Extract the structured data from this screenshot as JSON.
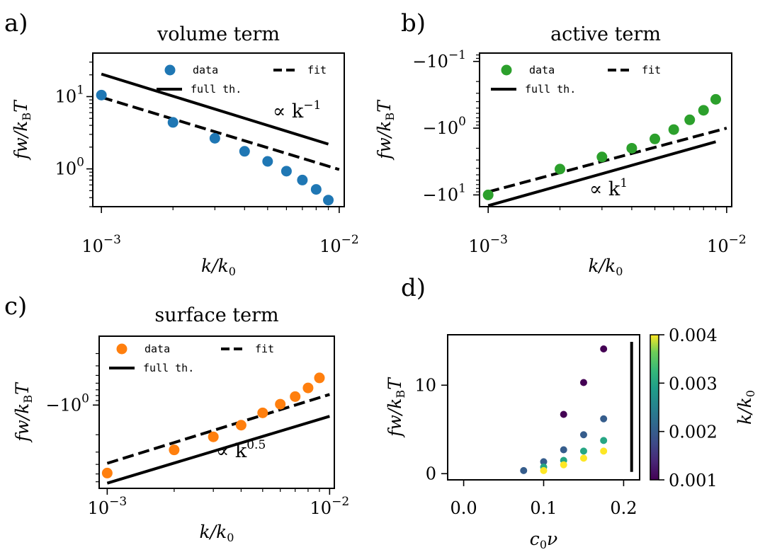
{
  "colors": {
    "blue": "#1f77b4",
    "green": "#2ca02c",
    "orange": "#ff7f0e",
    "black": "#000000"
  },
  "chart_data": [
    {
      "id": "a",
      "panel_label": "a)",
      "type": "scatter",
      "title": "volume term",
      "xscale": "log",
      "yscale": "log",
      "xlim": [
        0.00092,
        0.0105
      ],
      "ylim": [
        0.3,
        40
      ],
      "xticks": [
        {
          "v": 0.001,
          "b": "10",
          "e": "−3"
        },
        {
          "v": 0.01,
          "b": "10",
          "e": "−2"
        }
      ],
      "yticks": [
        {
          "v": 1,
          "b": "10",
          "e": "0"
        },
        {
          "v": 10,
          "b": "10",
          "e": "1"
        }
      ],
      "xlabel": {
        "main": "k/k",
        "sub": "0"
      },
      "ylabel": {
        "main": "fw/k",
        "sub": "B",
        "tail": "T"
      },
      "series": [
        {
          "name": "data",
          "kind": "points",
          "color": "blue",
          "x": [
            0.001,
            0.002,
            0.003,
            0.004,
            0.005,
            0.006,
            0.007,
            0.008,
            0.009
          ],
          "y": [
            10.5,
            4.4,
            2.65,
            1.75,
            1.27,
            0.93,
            0.7,
            0.52,
            0.37
          ]
        },
        {
          "name": "fit",
          "kind": "dashed",
          "x": [
            0.001,
            0.01
          ],
          "y": [
            9.8,
            0.98
          ]
        },
        {
          "name": "full th.",
          "kind": "solid",
          "x": [
            0.001,
            0.009
          ],
          "y": [
            20.5,
            2.2
          ]
        }
      ],
      "legend": [
        "data",
        "fit",
        "full th."
      ],
      "annotation": {
        "text": "∝ k",
        "sup": "−1"
      }
    },
    {
      "id": "b",
      "panel_label": "b)",
      "type": "scatter",
      "title": "active term",
      "xscale": "log",
      "yscale": "neglog",
      "xlim": [
        0.00092,
        0.0105
      ],
      "ylim": [
        -15,
        -0.075
      ],
      "xticks": [
        {
          "v": 0.001,
          "b": "10",
          "e": "−3"
        },
        {
          "v": 0.01,
          "b": "10",
          "e": "−2"
        }
      ],
      "yticks": [
        {
          "v": -10,
          "b": "−10",
          "e": "1"
        },
        {
          "v": -1,
          "b": "−10",
          "e": "0"
        },
        {
          "v": -0.1,
          "b": "−10",
          "e": "−1"
        }
      ],
      "xlabel": {
        "main": "k/k",
        "sub": "0"
      },
      "ylabel": {
        "main": "fw/k",
        "sub": "B",
        "tail": "T"
      },
      "series": [
        {
          "name": "data",
          "kind": "points",
          "color": "green",
          "x": [
            0.001,
            0.002,
            0.003,
            0.004,
            0.005,
            0.006,
            0.007,
            0.008,
            0.009
          ],
          "y": [
            -10,
            -4.1,
            -2.7,
            -2.0,
            -1.45,
            -1.05,
            -0.75,
            -0.54,
            -0.37
          ]
        },
        {
          "name": "fit",
          "kind": "dashed",
          "x": [
            0.001,
            0.01
          ],
          "y": [
            -9.0,
            -1.0
          ]
        },
        {
          "name": "full th.",
          "kind": "solid",
          "x": [
            0.001,
            0.009
          ],
          "y": [
            -14.5,
            -1.6
          ]
        }
      ],
      "legend": [
        "data",
        "fit",
        "full th."
      ],
      "annotation": {
        "text": "∝ k",
        "sup": "1"
      }
    },
    {
      "id": "c",
      "panel_label": "c)",
      "type": "scatter",
      "title": "surface term",
      "xscale": "log",
      "yscale": "neglog",
      "xlim": [
        0.00092,
        0.0105
      ],
      "ylim": [
        -7,
        -0.2
      ],
      "xticks": [
        {
          "v": 0.001,
          "b": "10",
          "e": "−3"
        },
        {
          "v": 0.01,
          "b": "10",
          "e": "−2"
        }
      ],
      "yticks": [
        {
          "v": -1,
          "b": "−10",
          "e": "0"
        }
      ],
      "xlabel": {
        "main": "k/k",
        "sub": "0"
      },
      "ylabel": {
        "main": "fw/k",
        "sub": "B",
        "tail": "T"
      },
      "series": [
        {
          "name": "data",
          "kind": "points",
          "color": "orange",
          "x": [
            0.001,
            0.002,
            0.003,
            0.004,
            0.005,
            0.006,
            0.007,
            0.008,
            0.009
          ],
          "y": [
            -4.9,
            -2.85,
            -2.1,
            -1.6,
            -1.2,
            -0.98,
            -0.82,
            -0.67,
            -0.53
          ]
        },
        {
          "name": "fit",
          "kind": "dashed",
          "x": [
            0.001,
            0.01
          ],
          "y": [
            -3.9,
            -0.78
          ]
        },
        {
          "name": "full th.",
          "kind": "solid",
          "x": [
            0.001,
            0.01
          ],
          "y": [
            -6.2,
            -1.3
          ]
        }
      ],
      "legend": [
        "data",
        "fit",
        "full th."
      ],
      "annotation": {
        "text": "∝ k",
        "sup": "0.5"
      }
    },
    {
      "id": "d",
      "panel_label": "d)",
      "type": "scatter",
      "xscale": "linear",
      "yscale": "linear",
      "xlim": [
        -0.02,
        0.22
      ],
      "ylim": [
        -0.7,
        15.7
      ],
      "xticks": [
        {
          "v": 0.0,
          "t": "0.0"
        },
        {
          "v": 0.1,
          "t": "0.1"
        },
        {
          "v": 0.2,
          "t": "0.2"
        }
      ],
      "yticks": [
        {
          "v": 0,
          "t": "0"
        },
        {
          "v": 10,
          "t": "10"
        }
      ],
      "xlabel": {
        "main": "c",
        "sub": "0",
        "tail": "ν"
      },
      "ylabel": {
        "main": "fw/k",
        "sub": "B",
        "tail": "T"
      },
      "points": [
        {
          "x": 0.075,
          "y": 0.35,
          "k": 0.002
        },
        {
          "x": 0.1,
          "y": 1.35,
          "k": 0.002
        },
        {
          "x": 0.1,
          "y": 0.75,
          "k": 0.003
        },
        {
          "x": 0.1,
          "y": 0.35,
          "k": 0.004
        },
        {
          "x": 0.125,
          "y": 6.7,
          "k": 0.001
        },
        {
          "x": 0.125,
          "y": 2.7,
          "k": 0.002
        },
        {
          "x": 0.125,
          "y": 1.5,
          "k": 0.003
        },
        {
          "x": 0.125,
          "y": 1.0,
          "k": 0.004
        },
        {
          "x": 0.15,
          "y": 10.3,
          "k": 0.001
        },
        {
          "x": 0.15,
          "y": 4.4,
          "k": 0.002
        },
        {
          "x": 0.15,
          "y": 2.55,
          "k": 0.003
        },
        {
          "x": 0.15,
          "y": 1.75,
          "k": 0.004
        },
        {
          "x": 0.175,
          "y": 14.1,
          "k": 0.001
        },
        {
          "x": 0.175,
          "y": 6.2,
          "k": 0.002
        },
        {
          "x": 0.175,
          "y": 3.75,
          "k": 0.003
        },
        {
          "x": 0.175,
          "y": 2.55,
          "k": 0.004
        }
      ],
      "vline": {
        "x": 0.21,
        "y": [
          0.2,
          14.9
        ]
      },
      "colorbar": {
        "label_main": "k/k",
        "label_sub": "0",
        "min": 0.001,
        "max": 0.004,
        "ticks": [
          "0.001",
          "0.002",
          "0.003",
          "0.004"
        ],
        "colormap": "viridis"
      }
    }
  ]
}
